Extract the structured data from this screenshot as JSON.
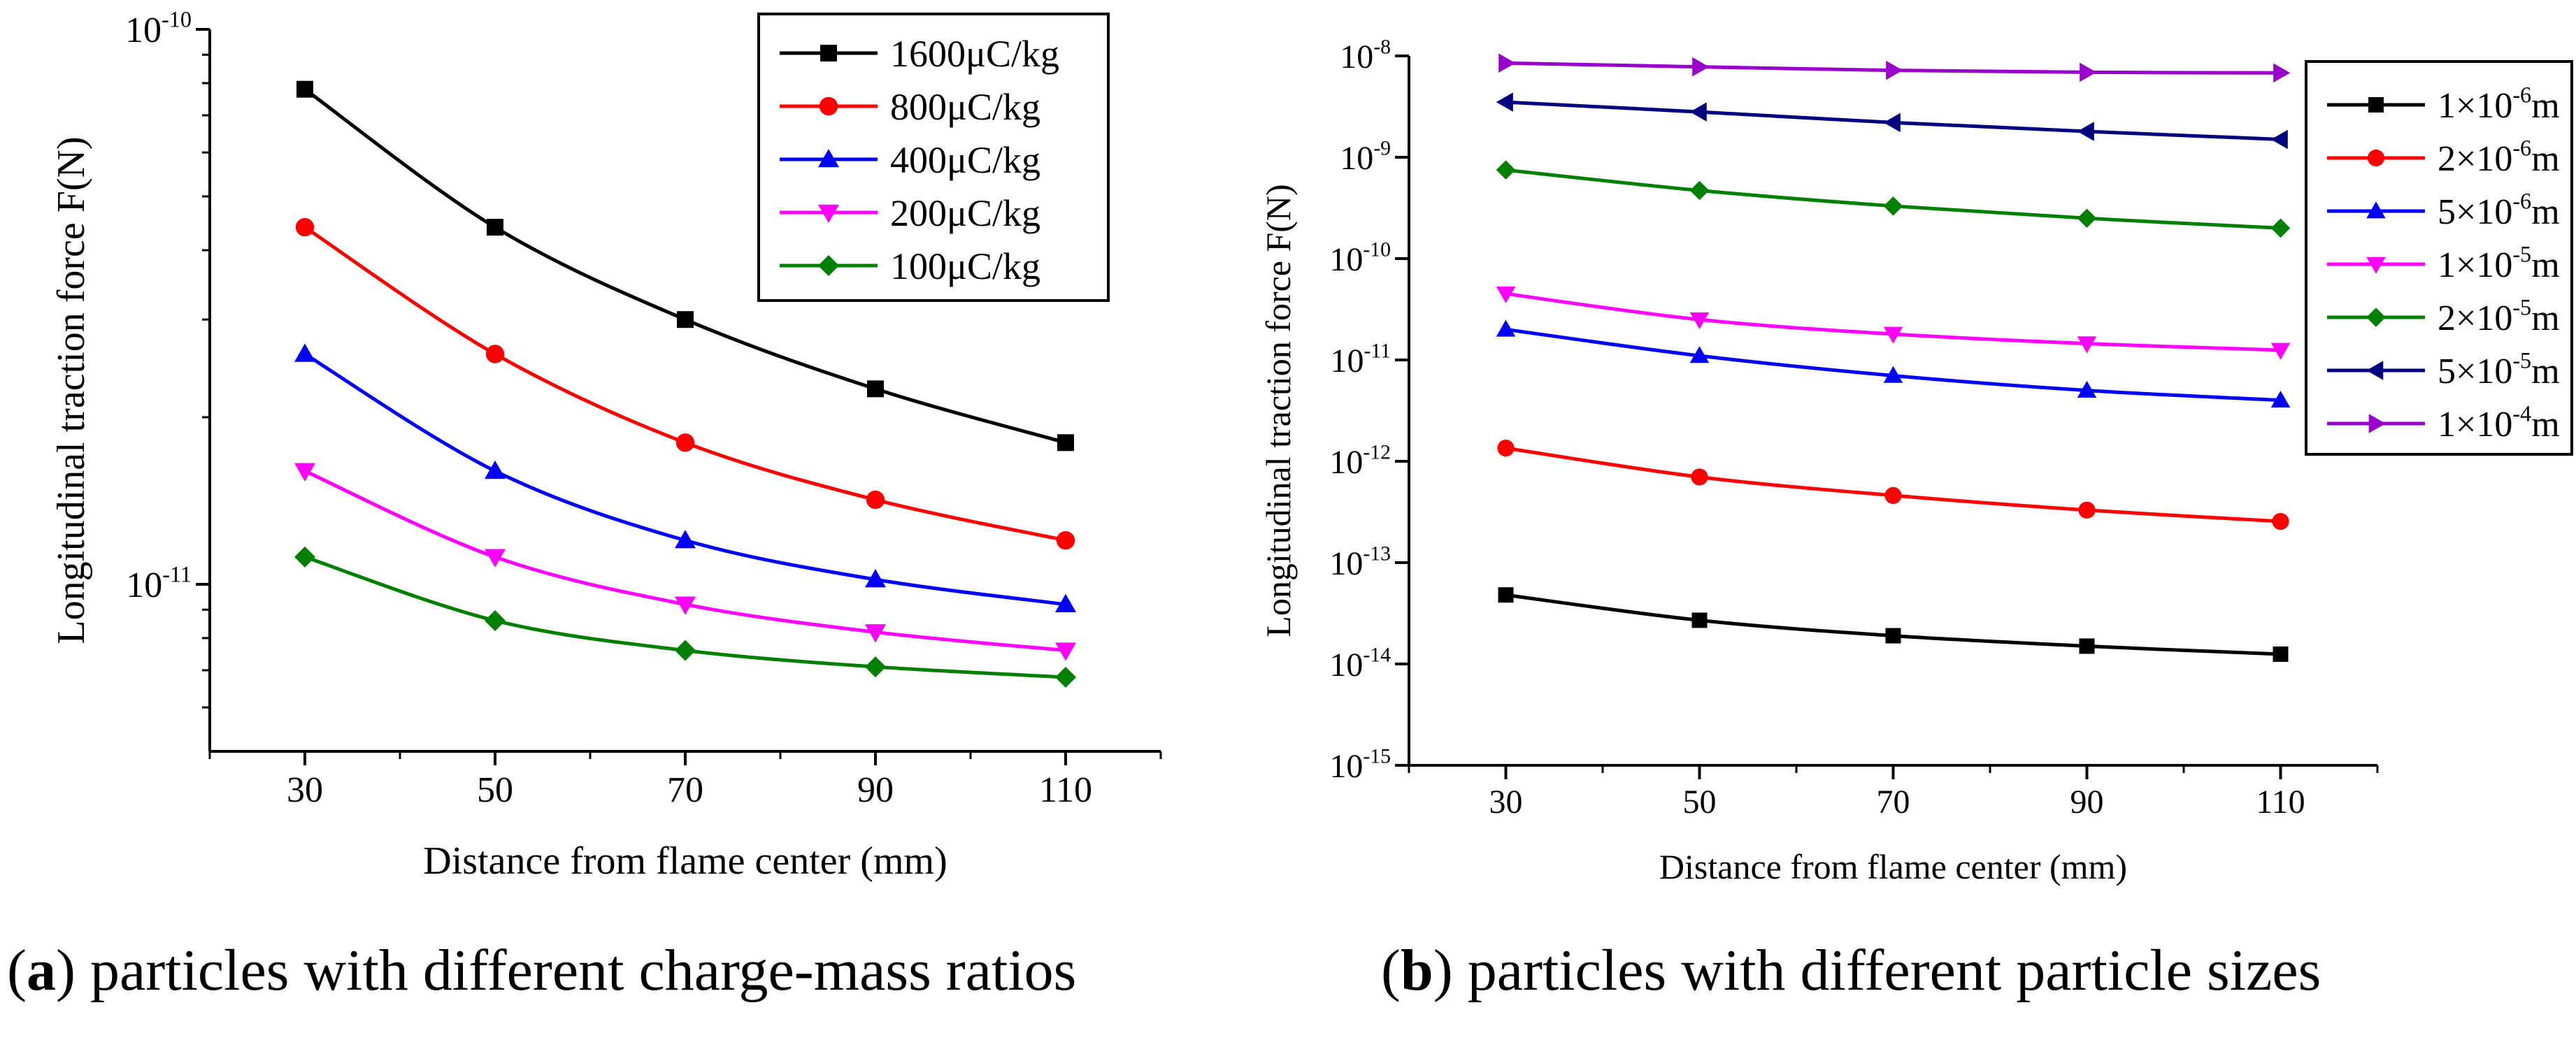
{
  "chart_data": [
    {
      "type": "line",
      "scale": "log",
      "title": "",
      "xlabel": "Distance from flame center (mm)",
      "ylabel": "Longitudinal traction force F(N)",
      "x": [
        30,
        50,
        70,
        90,
        110
      ],
      "xticks": [
        "30",
        "50",
        "70",
        "90",
        "110"
      ],
      "xlim": [
        20,
        120
      ],
      "ylim": [
        5e-12,
        1e-10
      ],
      "ytick_labels": [
        {
          "value": 1e-10,
          "base": "10",
          "exp": "-10"
        },
        {
          "value": 1e-11,
          "base": "10",
          "exp": "-11"
        }
      ],
      "legend_position": "top-right",
      "series": [
        {
          "name": "1600μC/kg",
          "marker": "square",
          "color": "#000000",
          "values": [
            7.8e-11,
            4.4e-11,
            3e-11,
            2.25e-11,
            1.8e-11
          ]
        },
        {
          "name": "800μC/kg",
          "marker": "circle",
          "color": "#ff0000",
          "values": [
            4.4e-11,
            2.6e-11,
            1.8e-11,
            1.42e-11,
            1.2e-11
          ]
        },
        {
          "name": "400μC/kg",
          "marker": "triangle-up",
          "color": "#0000ff",
          "values": [
            2.6e-11,
            1.6e-11,
            1.2e-11,
            1.02e-11,
            9.2e-12
          ]
        },
        {
          "name": "200μC/kg",
          "marker": "triangle-down",
          "color": "#ff00ff",
          "values": [
            1.6e-11,
            1.12e-11,
            9.2e-12,
            8.2e-12,
            7.6e-12
          ]
        },
        {
          "name": "100μC/kg",
          "marker": "diamond",
          "color": "#008000",
          "values": [
            1.12e-11,
            8.6e-12,
            7.6e-12,
            7.1e-12,
            6.8e-12
          ]
        }
      ]
    },
    {
      "type": "line",
      "scale": "log",
      "title": "",
      "xlabel": "Distance from flame center (mm)",
      "ylabel": "Longitudinal traction force F(N)",
      "x": [
        30,
        50,
        70,
        90,
        110
      ],
      "xticks": [
        "30",
        "50",
        "70",
        "90",
        "110"
      ],
      "xlim": [
        20,
        120
      ],
      "ylim": [
        1e-15,
        1e-08
      ],
      "ytick_labels": [
        {
          "value": 1e-08,
          "base": "10",
          "exp": "-8"
        },
        {
          "value": 1e-09,
          "base": "10",
          "exp": "-9"
        },
        {
          "value": 1e-10,
          "base": "10",
          "exp": "-10"
        },
        {
          "value": 1e-11,
          "base": "10",
          "exp": "-11"
        },
        {
          "value": 1e-12,
          "base": "10",
          "exp": "-12"
        },
        {
          "value": 1e-13,
          "base": "10",
          "exp": "-13"
        },
        {
          "value": 1e-14,
          "base": "10",
          "exp": "-14"
        },
        {
          "value": 1e-15,
          "base": "10",
          "exp": "-15"
        }
      ],
      "legend_position": "top-right",
      "series": [
        {
          "name": "1×10⁻⁶m",
          "label_main": "1×10",
          "label_exp": "-6",
          "label_unit": "m",
          "marker": "square",
          "color": "#000000",
          "values": [
            4.8e-14,
            2.7e-14,
            1.9e-14,
            1.5e-14,
            1.25e-14
          ]
        },
        {
          "name": "2×10⁻⁶m",
          "label_main": "2×10",
          "label_exp": "-6",
          "label_unit": "m",
          "marker": "circle",
          "color": "#ff0000",
          "values": [
            1.35e-12,
            7e-13,
            4.6e-13,
            3.3e-13,
            2.55e-13
          ]
        },
        {
          "name": "5×10⁻⁶m",
          "label_main": "5×10",
          "label_exp": "-6",
          "label_unit": "m",
          "marker": "triangle-up",
          "color": "#0000ff",
          "values": [
            2e-11,
            1.1e-11,
            7e-12,
            5e-12,
            4e-12
          ]
        },
        {
          "name": "1×10⁻⁵m",
          "label_main": "1×10",
          "label_exp": "-5",
          "label_unit": "m",
          "marker": "triangle-down",
          "color": "#ff00ff",
          "values": [
            4.5e-11,
            2.5e-11,
            1.8e-11,
            1.45e-11,
            1.25e-11
          ]
        },
        {
          "name": "2×10⁻⁵m",
          "label_main": "2×10",
          "label_exp": "-5",
          "label_unit": "m",
          "marker": "diamond",
          "color": "#008000",
          "values": [
            7.5e-10,
            4.7e-10,
            3.3e-10,
            2.5e-10,
            2e-10
          ]
        },
        {
          "name": "5×10⁻⁵m",
          "label_main": "5×10",
          "label_exp": "-5",
          "label_unit": "m",
          "marker": "triangle-left",
          "color": "#000080",
          "values": [
            3.5e-09,
            2.8e-09,
            2.2e-09,
            1.8e-09,
            1.5e-09
          ]
        },
        {
          "name": "1×10⁻⁴m",
          "label_main": "1×10",
          "label_exp": "-4",
          "label_unit": "m",
          "marker": "triangle-right",
          "color": "#9900cc",
          "values": [
            8.5e-09,
            7.8e-09,
            7.2e-09,
            6.9e-09,
            6.8e-09
          ]
        }
      ]
    }
  ],
  "captions": [
    {
      "letter": "a",
      "text": "particles with different charge-mass ratios"
    },
    {
      "letter": "b",
      "text": "particles with different particle sizes"
    }
  ]
}
